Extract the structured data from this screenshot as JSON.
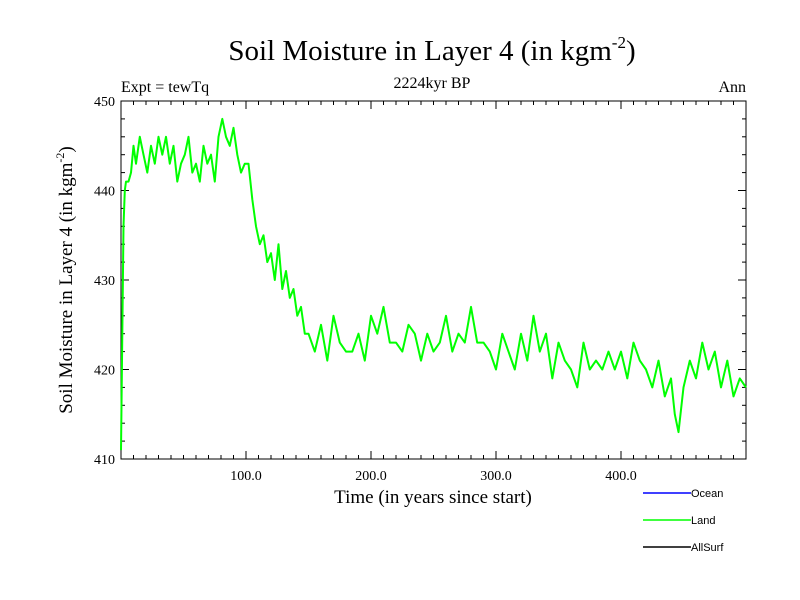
{
  "chart_data": {
    "type": "line",
    "title_main": "Soil Moisture in Layer 4 (in kgm",
    "title_sup": "-2",
    "title_close": ")",
    "subtitle": "2224kyr BP",
    "expt_label": "Expt = tewTq",
    "period_label": "Ann",
    "xlabel": "Time (in years since start)",
    "ylabel_main": "Soil Moisture in Layer 4 (in kgm",
    "ylabel_sup": "-2",
    "ylabel_close": ")",
    "xlim": [
      0,
      500
    ],
    "ylim": [
      410,
      450
    ],
    "x_ticks": [
      100,
      200,
      300,
      400
    ],
    "x_tick_labels": [
      "100.0",
      "200.0",
      "300.0",
      "400.0"
    ],
    "y_ticks": [
      410,
      420,
      430,
      440,
      450
    ],
    "y_tick_labels": [
      "410",
      "420",
      "430",
      "440",
      "450"
    ],
    "legend": [
      {
        "name": "Ocean",
        "color": "#0000ff"
      },
      {
        "name": "Land",
        "color": "#00ff00"
      },
      {
        "name": "AllSurf",
        "color": "#000000"
      }
    ],
    "series": [
      {
        "name": "Land",
        "color": "#00ff00",
        "x": [
          0,
          1,
          2,
          3,
          4,
          6,
          8,
          10,
          12,
          15,
          18,
          21,
          24,
          27,
          30,
          33,
          36,
          39,
          42,
          45,
          48,
          51,
          54,
          57,
          60,
          63,
          66,
          69,
          72,
          75,
          78,
          81,
          84,
          87,
          90,
          93,
          96,
          99,
          102,
          105,
          108,
          111,
          114,
          117,
          120,
          123,
          126,
          129,
          132,
          135,
          138,
          141,
          144,
          147,
          150,
          155,
          160,
          165,
          170,
          175,
          180,
          185,
          190,
          195,
          200,
          205,
          210,
          215,
          220,
          225,
          230,
          235,
          240,
          245,
          250,
          255,
          260,
          265,
          270,
          275,
          280,
          285,
          290,
          295,
          300,
          305,
          310,
          315,
          320,
          325,
          330,
          335,
          340,
          345,
          350,
          355,
          360,
          365,
          370,
          375,
          380,
          385,
          390,
          395,
          400,
          405,
          410,
          415,
          420,
          425,
          430,
          435,
          440,
          443,
          446,
          450,
          455,
          460,
          465,
          470,
          475,
          480,
          485,
          490,
          495,
          500
        ],
        "values": [
          411,
          424,
          436,
          440,
          441,
          441,
          442,
          445,
          443,
          446,
          444,
          442,
          445,
          443,
          446,
          444,
          446,
          443,
          445,
          441,
          443,
          444,
          446,
          442,
          443,
          441,
          445,
          443,
          444,
          441,
          446,
          448,
          446,
          445,
          447,
          444,
          442,
          443,
          443,
          439,
          436,
          434,
          435,
          432,
          433,
          430,
          434,
          429,
          431,
          428,
          429,
          426,
          427,
          424,
          424,
          422,
          425,
          421,
          426,
          423,
          422,
          422,
          424,
          421,
          426,
          424,
          427,
          423,
          423,
          422,
          425,
          424,
          421,
          424,
          422,
          423,
          426,
          422,
          424,
          423,
          427,
          423,
          423,
          422,
          420,
          424,
          422,
          420,
          424,
          421,
          426,
          422,
          424,
          419,
          423,
          421,
          420,
          418,
          423,
          420,
          421,
          420,
          422,
          420,
          422,
          419,
          423,
          421,
          420,
          418,
          421,
          417,
          419,
          415,
          413,
          418,
          421,
          419,
          423,
          420,
          422,
          418,
          421,
          417,
          419,
          418
        ]
      }
    ]
  }
}
